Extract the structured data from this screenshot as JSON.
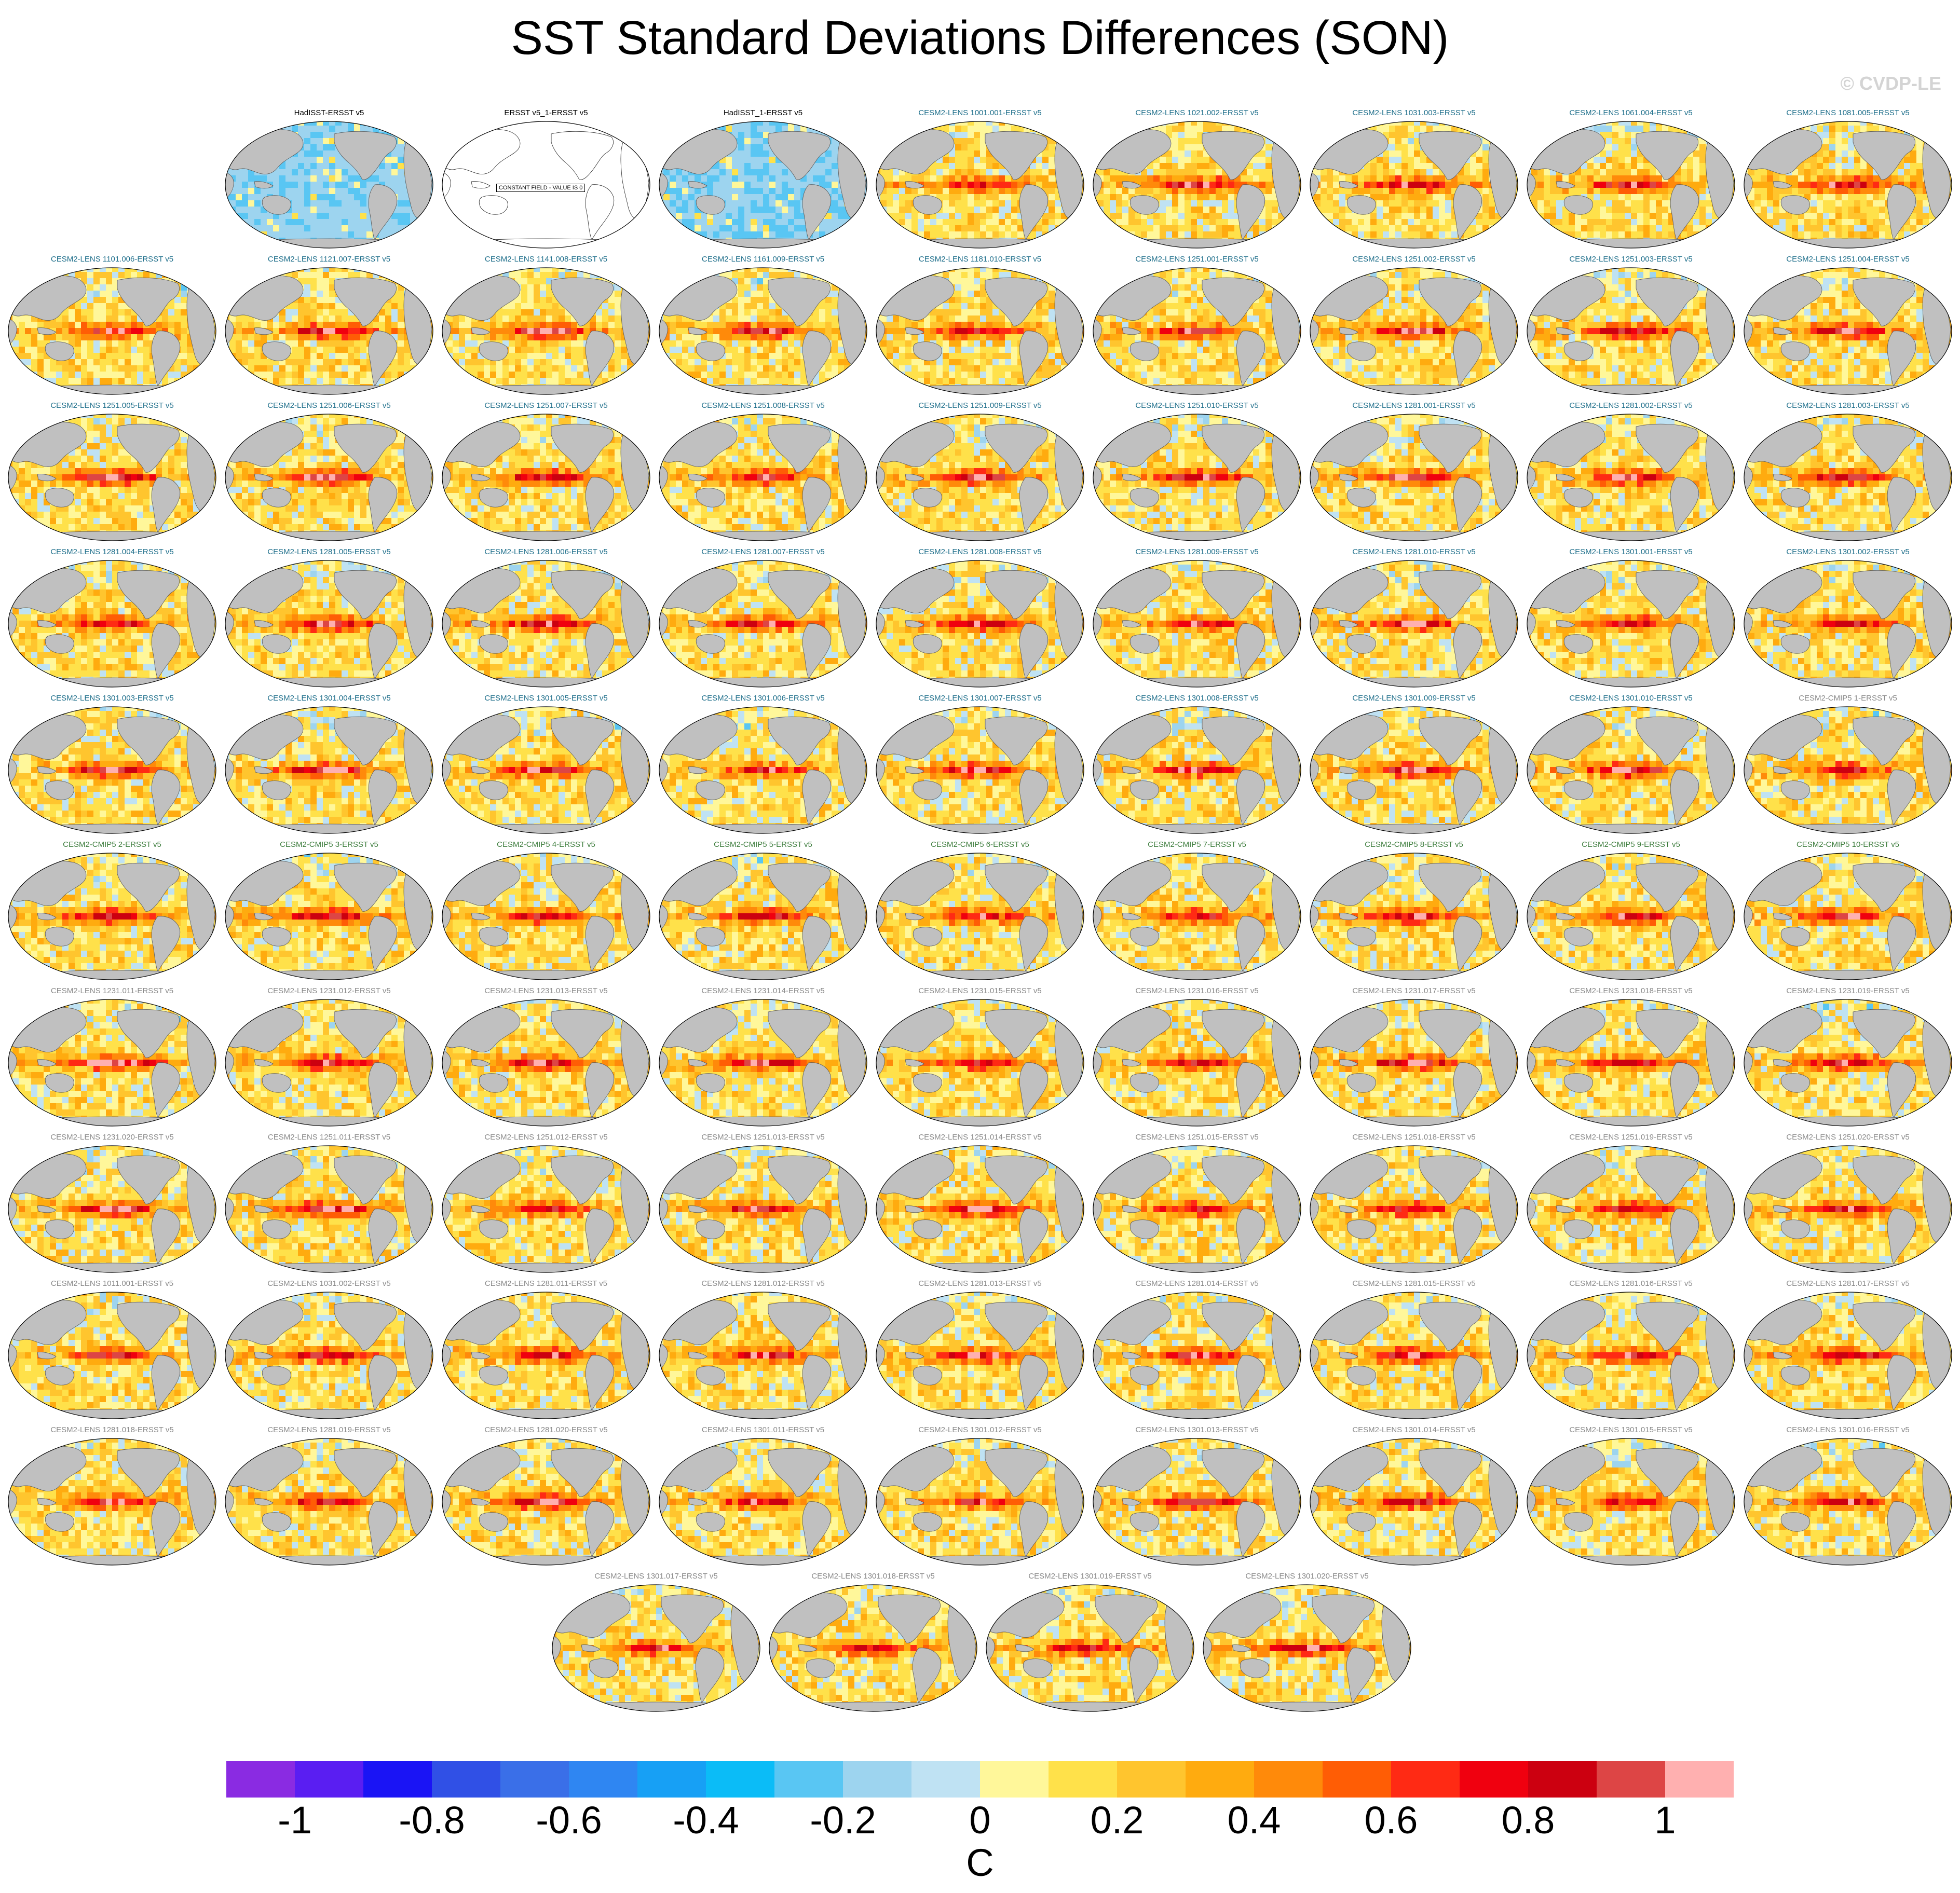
{
  "title": "SST Standard Deviations Differences (SON)",
  "watermark": "© CVDP-LE",
  "constant_field_note": "CONSTANT FIELD - VALUE IS 0",
  "land_color": "#c0c0c0",
  "label_colors": {
    "observations": "#000000",
    "cesm2_lens": "#1f6f8b",
    "cesm2_cmip5": "#3d7d3d",
    "secondary": "#8a8a8a"
  },
  "chart_data": {
    "type": "heatmap",
    "title": "SST Standard Deviations Differences (SON)",
    "colorbar": {
      "unit": "C",
      "tick_labels": [
        "-1",
        "-0.8",
        "-0.6",
        "-0.4",
        "-0.2",
        "0",
        "0.2",
        "0.4",
        "0.6",
        "0.8",
        "1"
      ],
      "tick_values": [
        -1,
        -0.8,
        -0.6,
        -0.4,
        -0.2,
        0,
        0.2,
        0.4,
        0.6,
        0.8,
        1
      ],
      "levels": [
        -1.1,
        -1,
        -0.9,
        -0.8,
        -0.7,
        -0.6,
        -0.5,
        -0.4,
        -0.3,
        -0.2,
        -0.1,
        0,
        0.1,
        0.2,
        0.3,
        0.4,
        0.5,
        0.6,
        0.7,
        0.8,
        0.9,
        1,
        1.1
      ],
      "colors": [
        "#8a2be2",
        "#5a1ef2",
        "#1a14f5",
        "#3050e6",
        "#3a6fe8",
        "#2f86f2",
        "#17a0f5",
        "#0bbcf7",
        "#59c6f3",
        "#9dd4ef",
        "#bfe2f3",
        "#fff79a",
        "#ffe14a",
        "#ffc52e",
        "#ffab0f",
        "#ff8a0a",
        "#ff5d05",
        "#ff2a14",
        "#f0000f",
        "#cc0010",
        "#dd4545",
        "#ffb0b0"
      ]
    },
    "panels": [
      {
        "label": "HadISST-ERSST v5",
        "group": "observations",
        "pattern": "obs"
      },
      {
        "label": "ERSST v5_1-ERSST v5",
        "group": "observations",
        "pattern": "constant"
      },
      {
        "label": "HadISST_1-ERSST v5",
        "group": "observations",
        "pattern": "obs"
      },
      {
        "label": "CESM2-LENS 1001.001-ERSST v5",
        "group": "cesm2_lens",
        "intensity": 0.7
      },
      {
        "label": "CESM2-LENS 1021.002-ERSST v5",
        "group": "cesm2_lens",
        "intensity": 0.95
      },
      {
        "label": "CESM2-LENS 1031.003-ERSST v5",
        "group": "cesm2_lens",
        "intensity": 0.85
      },
      {
        "label": "CESM2-LENS 1061.004-ERSST v5",
        "group": "cesm2_lens",
        "intensity": 0.8
      },
      {
        "label": "CESM2-LENS 1081.005-ERSST v5",
        "group": "cesm2_lens",
        "intensity": 0.85
      },
      {
        "label": "CESM2-LENS 1101.006-ERSST v5",
        "group": "cesm2_lens",
        "intensity": 0.75
      },
      {
        "label": "CESM2-LENS 1121.007-ERSST v5",
        "group": "cesm2_lens",
        "intensity": 0.85
      },
      {
        "label": "CESM2-LENS 1141.008-ERSST v5",
        "group": "cesm2_lens",
        "intensity": 1.0
      },
      {
        "label": "CESM2-LENS 1161.009-ERSST v5",
        "group": "cesm2_lens",
        "intensity": 0.9
      },
      {
        "label": "CESM2-LENS 1181.010-ERSST v5",
        "group": "cesm2_lens",
        "intensity": 0.75
      },
      {
        "label": "CESM2-LENS 1251.001-ERSST v5",
        "group": "cesm2_lens",
        "intensity": 0.75
      },
      {
        "label": "CESM2-LENS 1251.002-ERSST v5",
        "group": "cesm2_lens",
        "intensity": 0.95
      },
      {
        "label": "CESM2-LENS 1251.003-ERSST v5",
        "group": "cesm2_lens",
        "intensity": 0.85
      },
      {
        "label": "CESM2-LENS 1251.004-ERSST v5",
        "group": "cesm2_lens",
        "intensity": 0.9
      },
      {
        "label": "CESM2-LENS 1251.005-ERSST v5",
        "group": "cesm2_lens",
        "intensity": 1.0
      },
      {
        "label": "CESM2-LENS 1251.006-ERSST v5",
        "group": "cesm2_lens",
        "intensity": 1.0
      },
      {
        "label": "CESM2-LENS 1251.007-ERSST v5",
        "group": "cesm2_lens",
        "intensity": 0.85
      },
      {
        "label": "CESM2-LENS 1251.008-ERSST v5",
        "group": "cesm2_lens",
        "intensity": 0.8
      },
      {
        "label": "CESM2-LENS 1251.009-ERSST v5",
        "group": "cesm2_lens",
        "intensity": 0.95
      },
      {
        "label": "CESM2-LENS 1251.010-ERSST v5",
        "group": "cesm2_lens",
        "intensity": 0.95
      },
      {
        "label": "CESM2-LENS 1281.001-ERSST v5",
        "group": "cesm2_lens",
        "intensity": 0.85
      },
      {
        "label": "CESM2-LENS 1281.002-ERSST v5",
        "group": "cesm2_lens",
        "intensity": 0.9
      },
      {
        "label": "CESM2-LENS 1281.003-ERSST v5",
        "group": "cesm2_lens",
        "intensity": 0.8
      },
      {
        "label": "CESM2-LENS 1281.004-ERSST v5",
        "group": "cesm2_lens",
        "intensity": 0.7
      },
      {
        "label": "CESM2-LENS 1281.005-ERSST v5",
        "group": "cesm2_lens",
        "intensity": 1.0
      },
      {
        "label": "CESM2-LENS 1281.006-ERSST v5",
        "group": "cesm2_lens",
        "intensity": 0.85
      },
      {
        "label": "CESM2-LENS 1281.007-ERSST v5",
        "group": "cesm2_lens",
        "intensity": 0.85
      },
      {
        "label": "CESM2-LENS 1281.008-ERSST v5",
        "group": "cesm2_lens",
        "intensity": 0.95
      },
      {
        "label": "CESM2-LENS 1281.009-ERSST v5",
        "group": "cesm2_lens",
        "intensity": 0.75
      },
      {
        "label": "CESM2-LENS 1281.010-ERSST v5",
        "group": "cesm2_lens",
        "intensity": 0.9
      },
      {
        "label": "CESM2-LENS 1301.001-ERSST v5",
        "group": "cesm2_lens",
        "intensity": 0.8
      },
      {
        "label": "CESM2-LENS 1301.002-ERSST v5",
        "group": "cesm2_lens",
        "intensity": 0.7
      },
      {
        "label": "CESM2-LENS 1301.003-ERSST v5",
        "group": "cesm2_lens",
        "intensity": 0.9
      },
      {
        "label": "CESM2-LENS 1301.004-ERSST v5",
        "group": "cesm2_lens",
        "intensity": 1.0
      },
      {
        "label": "CESM2-LENS 1301.005-ERSST v5",
        "group": "cesm2_lens",
        "intensity": 0.85
      },
      {
        "label": "CESM2-LENS 1301.006-ERSST v5",
        "group": "cesm2_lens",
        "intensity": 0.75
      },
      {
        "label": "CESM2-LENS 1301.007-ERSST v5",
        "group": "cesm2_lens",
        "intensity": 0.9
      },
      {
        "label": "CESM2-LENS 1301.008-ERSST v5",
        "group": "cesm2_lens",
        "intensity": 0.9
      },
      {
        "label": "CESM2-LENS 1301.009-ERSST v5",
        "group": "cesm2_lens",
        "intensity": 0.95
      },
      {
        "label": "CESM2-LENS 1301.010-ERSST v5",
        "group": "cesm2_lens",
        "intensity": 1.0
      },
      {
        "label": "CESM2-CMIP5 1-ERSST v5",
        "group": "secondary",
        "intensity": 0.75
      },
      {
        "label": "CESM2-CMIP5 2-ERSST v5",
        "group": "cesm2_cmip5",
        "intensity": 0.8
      },
      {
        "label": "CESM2-CMIP5 3-ERSST v5",
        "group": "cesm2_cmip5",
        "intensity": 0.85
      },
      {
        "label": "CESM2-CMIP5 4-ERSST v5",
        "group": "cesm2_cmip5",
        "intensity": 0.75
      },
      {
        "label": "CESM2-CMIP5 5-ERSST v5",
        "group": "cesm2_cmip5",
        "intensity": 0.8
      },
      {
        "label": "CESM2-CMIP5 6-ERSST v5",
        "group": "cesm2_cmip5",
        "intensity": 0.7
      },
      {
        "label": "CESM2-CMIP5 7-ERSST v5",
        "group": "cesm2_cmip5",
        "intensity": 0.75
      },
      {
        "label": "CESM2-CMIP5 8-ERSST v5",
        "group": "cesm2_cmip5",
        "intensity": 0.9
      },
      {
        "label": "CESM2-CMIP5 9-ERSST v5",
        "group": "cesm2_cmip5",
        "intensity": 0.8
      },
      {
        "label": "CESM2-CMIP5 10-ERSST v5",
        "group": "cesm2_cmip5",
        "intensity": 0.8
      },
      {
        "label": "CESM2-LENS 1231.011-ERSST v5",
        "group": "secondary",
        "intensity": 1.0
      },
      {
        "label": "CESM2-LENS 1231.012-ERSST v5",
        "group": "secondary",
        "intensity": 0.9
      },
      {
        "label": "CESM2-LENS 1231.013-ERSST v5",
        "group": "secondary",
        "intensity": 0.85
      },
      {
        "label": "CESM2-LENS 1231.014-ERSST v5",
        "group": "secondary",
        "intensity": 0.85
      },
      {
        "label": "CESM2-LENS 1231.015-ERSST v5",
        "group": "secondary",
        "intensity": 0.75
      },
      {
        "label": "CESM2-LENS 1231.016-ERSST v5",
        "group": "secondary",
        "intensity": 0.75
      },
      {
        "label": "CESM2-LENS 1231.017-ERSST v5",
        "group": "secondary",
        "intensity": 0.95
      },
      {
        "label": "CESM2-LENS 1231.018-ERSST v5",
        "group": "secondary",
        "intensity": 0.8
      },
      {
        "label": "CESM2-LENS 1231.019-ERSST v5",
        "group": "secondary",
        "intensity": 0.85
      },
      {
        "label": "CESM2-LENS 1231.020-ERSST v5",
        "group": "secondary",
        "intensity": 0.95
      },
      {
        "label": "CESM2-LENS 1251.011-ERSST v5",
        "group": "secondary",
        "intensity": 1.0
      },
      {
        "label": "CESM2-LENS 1251.012-ERSST v5",
        "group": "secondary",
        "intensity": 0.8
      },
      {
        "label": "CESM2-LENS 1251.013-ERSST v5",
        "group": "secondary",
        "intensity": 0.85
      },
      {
        "label": "CESM2-LENS 1251.014-ERSST v5",
        "group": "secondary",
        "intensity": 1.0
      },
      {
        "label": "CESM2-LENS 1251.015-ERSST v5",
        "group": "secondary",
        "intensity": 0.75
      },
      {
        "label": "CESM2-LENS 1251.018-ERSST v5",
        "group": "secondary",
        "intensity": 0.8
      },
      {
        "label": "CESM2-LENS 1251.019-ERSST v5",
        "group": "secondary",
        "intensity": 0.75
      },
      {
        "label": "CESM2-LENS 1251.020-ERSST v5",
        "group": "secondary",
        "intensity": 0.8
      },
      {
        "label": "CESM2-LENS 1011.001-ERSST v5",
        "group": "secondary",
        "intensity": 0.8
      },
      {
        "label": "CESM2-LENS 1031.002-ERSST v5",
        "group": "secondary",
        "intensity": 0.9
      },
      {
        "label": "CESM2-LENS 1281.011-ERSST v5",
        "group": "secondary",
        "intensity": 0.85
      },
      {
        "label": "CESM2-LENS 1281.012-ERSST v5",
        "group": "secondary",
        "intensity": 0.8
      },
      {
        "label": "CESM2-LENS 1281.013-ERSST v5",
        "group": "secondary",
        "intensity": 0.9
      },
      {
        "label": "CESM2-LENS 1281.014-ERSST v5",
        "group": "secondary",
        "intensity": 0.9
      },
      {
        "label": "CESM2-LENS 1281.015-ERSST v5",
        "group": "secondary",
        "intensity": 0.85
      },
      {
        "label": "CESM2-LENS 1281.016-ERSST v5",
        "group": "secondary",
        "intensity": 0.8
      },
      {
        "label": "CESM2-LENS 1281.017-ERSST v5",
        "group": "secondary",
        "intensity": 0.8
      },
      {
        "label": "CESM2-LENS 1281.018-ERSST v5",
        "group": "secondary",
        "intensity": 0.8
      },
      {
        "label": "CESM2-LENS 1281.019-ERSST v5",
        "group": "secondary",
        "intensity": 0.75
      },
      {
        "label": "CESM2-LENS 1281.020-ERSST v5",
        "group": "secondary",
        "intensity": 1.0
      },
      {
        "label": "CESM2-LENS 1301.011-ERSST v5",
        "group": "secondary",
        "intensity": 0.75
      },
      {
        "label": "CESM2-LENS 1301.012-ERSST v5",
        "group": "secondary",
        "intensity": 0.7
      },
      {
        "label": "CESM2-LENS 1301.013-ERSST v5",
        "group": "secondary",
        "intensity": 0.8
      },
      {
        "label": "CESM2-LENS 1301.014-ERSST v5",
        "group": "secondary",
        "intensity": 0.85
      },
      {
        "label": "CESM2-LENS 1301.015-ERSST v5",
        "group": "secondary",
        "intensity": 0.7
      },
      {
        "label": "CESM2-LENS 1301.016-ERSST v5",
        "group": "secondary",
        "intensity": 0.75
      },
      {
        "label": "CESM2-LENS 1301.017-ERSST v5",
        "group": "secondary",
        "intensity": 0.75
      },
      {
        "label": "CESM2-LENS 1301.018-ERSST v5",
        "group": "secondary",
        "intensity": 0.75
      },
      {
        "label": "CESM2-LENS 1301.019-ERSST v5",
        "group": "secondary",
        "intensity": 0.8
      },
      {
        "label": "CESM2-LENS 1301.020-ERSST v5",
        "group": "secondary",
        "intensity": 0.85
      }
    ]
  }
}
